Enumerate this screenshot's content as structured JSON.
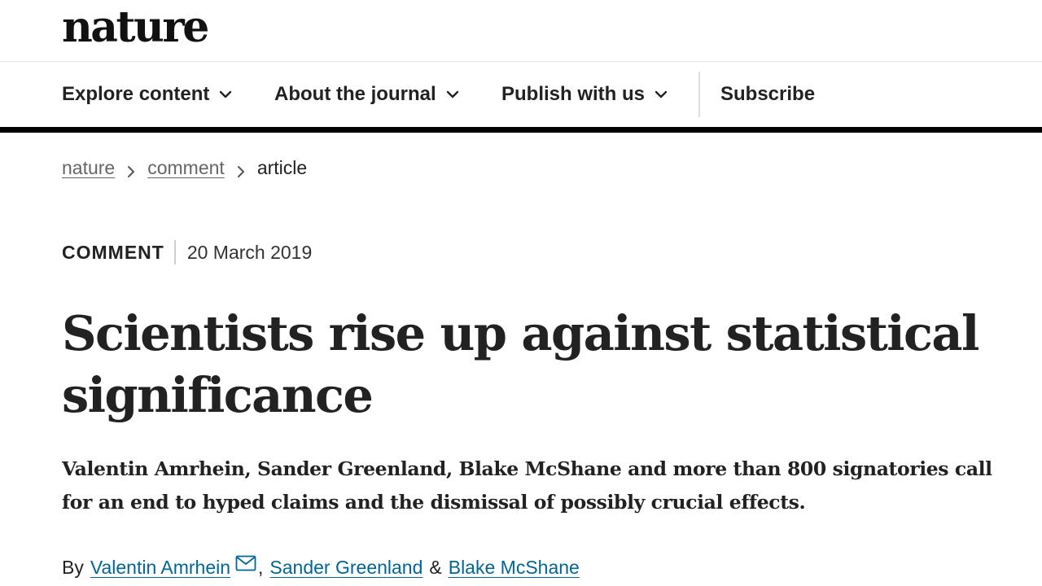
{
  "header": {
    "logo_text": "nature"
  },
  "nav": {
    "items": [
      {
        "label": "Explore content",
        "icon": "chevron-down-icon"
      },
      {
        "label": "About the journal",
        "icon": "chevron-down-icon"
      },
      {
        "label": "Publish with us",
        "icon": "chevron-down-icon"
      }
    ],
    "subscribe_label": "Subscribe"
  },
  "breadcrumb": {
    "items": [
      "nature",
      "comment",
      "article"
    ],
    "separator_icon": "chevron-right-icon"
  },
  "article": {
    "type": "COMMENT",
    "date": "20 March 2019",
    "title": "Scientists rise up against statistical significance",
    "standfirst": "Valentin Amrhein, Sander Greenland, Blake McShane and more than 800 signatories call for an end to hyped claims and the dismissal of possibly crucial effects.",
    "byline": {
      "prefix": "By",
      "authors": [
        "Valentin Amrhein",
        "Sander Greenland",
        "Blake McShane"
      ],
      "comma": ",",
      "ampersand": "&",
      "contact_icon": "mail-icon"
    }
  },
  "colors": {
    "text": "#222222",
    "link": "#006699",
    "muted": "#666666",
    "rule": "#000000"
  }
}
